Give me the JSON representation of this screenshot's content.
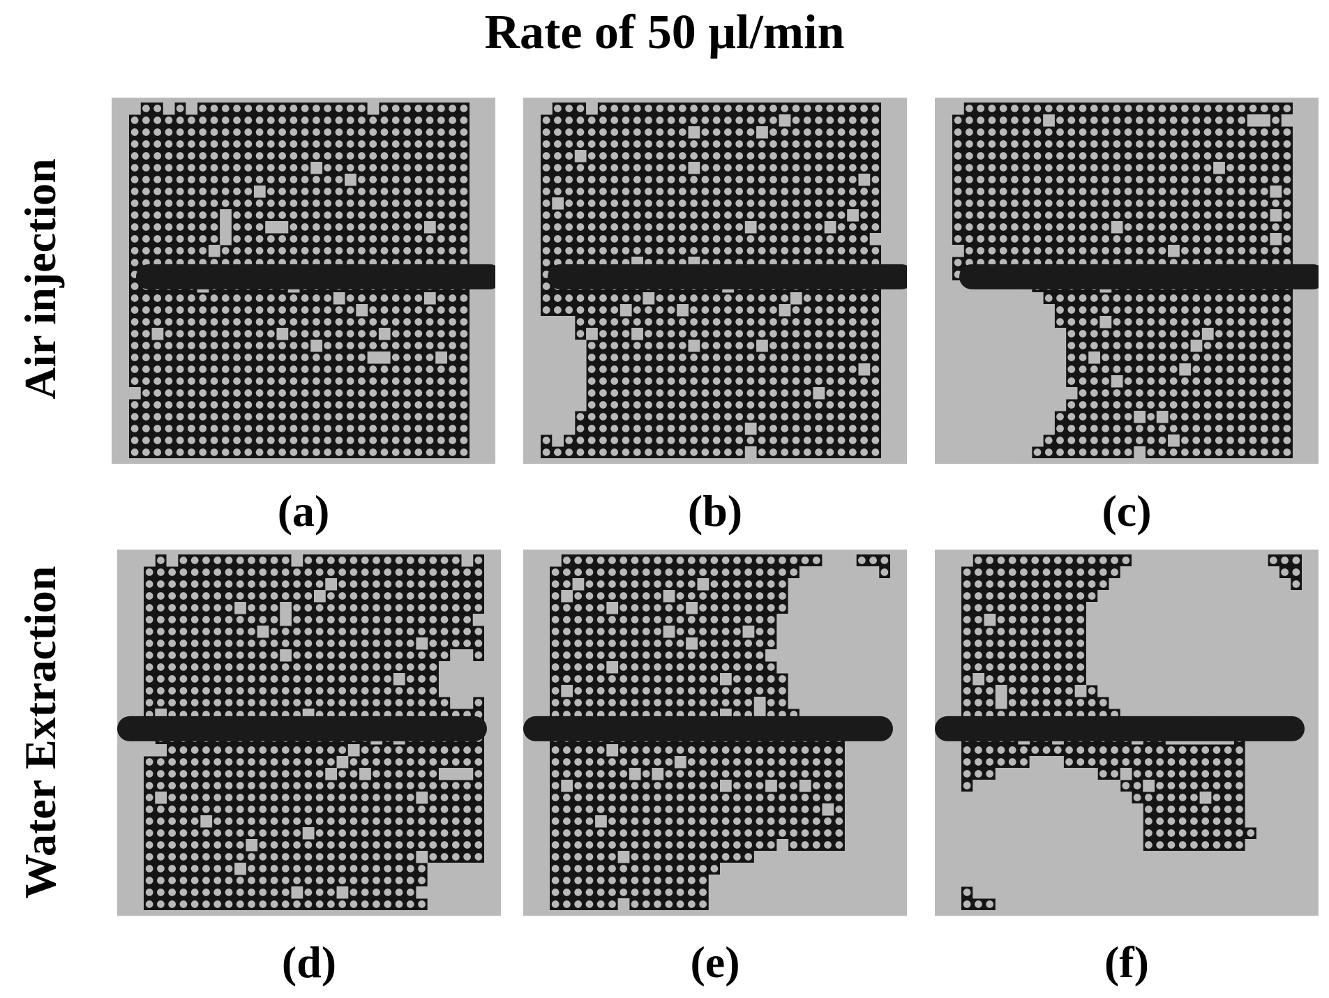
{
  "title": "Rate of 50 μl/min",
  "row_labels": [
    "Air injection",
    "Water Extraction"
  ],
  "panels": [
    {
      "label": "(a)"
    },
    {
      "label": "(b)"
    },
    {
      "label": "(c)"
    },
    {
      "label": "(d)"
    },
    {
      "label": "(e)"
    },
    {
      "label": "(f)"
    }
  ],
  "colors": {
    "grid_dark": "#151515",
    "pore_light": "#b9b9b9",
    "frame": "#c9c9c9"
  }
}
